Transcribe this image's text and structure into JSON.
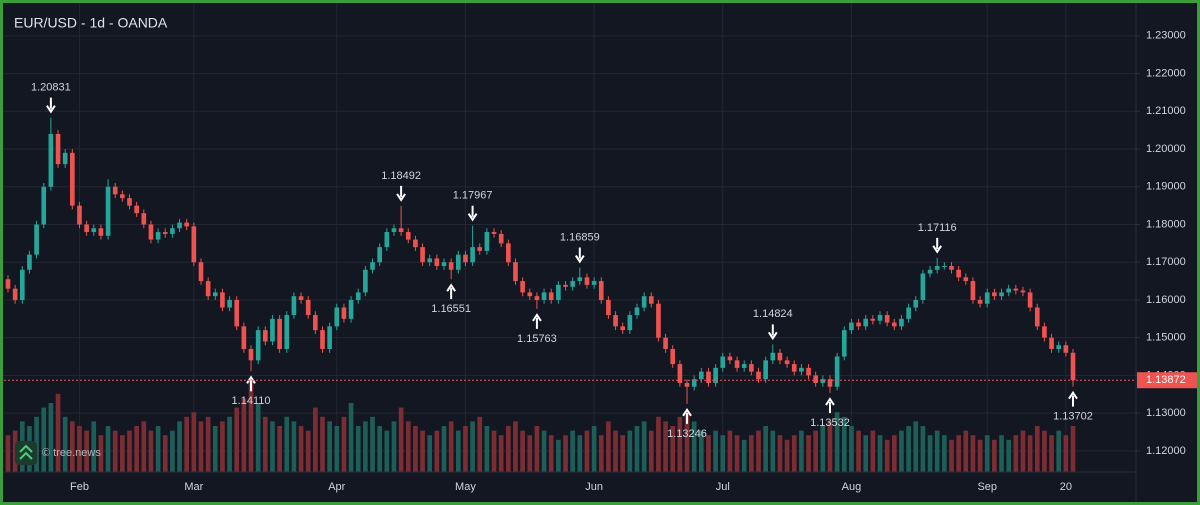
{
  "chart_data": {
    "type": "candlestick",
    "title": "EUR/USD - 1d - OANDA",
    "watermark": "© tree.news",
    "up_color": "#26a69a",
    "down_color": "#ef5350",
    "volume_up_color": "#1d5e58",
    "volume_down_color": "#7c2d33",
    "ylim": [
      1.1144,
      1.2395
    ],
    "yticks": [
      {
        "value": 1.12,
        "label": "1.12000"
      },
      {
        "value": 1.13,
        "label": "1.13000"
      },
      {
        "value": 1.14,
        "label": "1.14000"
      },
      {
        "value": 1.15,
        "label": "1.15000"
      },
      {
        "value": 1.16,
        "label": "1.16000"
      },
      {
        "value": 1.17,
        "label": "1.17000"
      },
      {
        "value": 1.18,
        "label": "1.18000"
      },
      {
        "value": 1.19,
        "label": "1.19000"
      },
      {
        "value": 1.2,
        "label": "1.20000"
      },
      {
        "value": 1.21,
        "label": "1.21000"
      },
      {
        "value": 1.22,
        "label": "1.22000"
      },
      {
        "value": 1.23,
        "label": "1.23000"
      }
    ],
    "grid": true,
    "categories": [
      null,
      null,
      null,
      null,
      null,
      null,
      null,
      null,
      null,
      null,
      "Feb",
      null,
      null,
      null,
      null,
      null,
      null,
      null,
      null,
      null,
      null,
      null,
      null,
      null,
      null,
      null,
      "Mar",
      null,
      null,
      null,
      null,
      null,
      null,
      null,
      null,
      null,
      null,
      null,
      null,
      null,
      null,
      null,
      null,
      null,
      null,
      null,
      "Apr",
      null,
      null,
      null,
      null,
      null,
      null,
      null,
      null,
      null,
      null,
      null,
      null,
      null,
      null,
      null,
      null,
      null,
      "May",
      null,
      null,
      null,
      null,
      null,
      null,
      null,
      null,
      null,
      null,
      null,
      null,
      null,
      null,
      null,
      null,
      null,
      "Jun",
      null,
      null,
      null,
      null,
      null,
      null,
      null,
      null,
      null,
      null,
      null,
      null,
      null,
      null,
      null,
      null,
      null,
      "Jul",
      null,
      null,
      null,
      null,
      null,
      null,
      null,
      null,
      null,
      null,
      null,
      null,
      null,
      null,
      null,
      null,
      null,
      "Aug",
      null,
      null,
      null,
      null,
      null,
      null,
      null,
      null,
      null,
      null,
      null,
      null,
      null,
      null,
      null,
      null,
      null,
      null,
      "Sep",
      null,
      null,
      null,
      null,
      null,
      null,
      null,
      null,
      null,
      null,
      "20",
      null
    ],
    "ohlc": [
      [
        1.1655,
        1.1665,
        1.162,
        1.163
      ],
      [
        1.163,
        1.164,
        1.159,
        1.16
      ],
      [
        1.16,
        1.169,
        1.159,
        1.168
      ],
      [
        1.168,
        1.173,
        1.167,
        1.172
      ],
      [
        1.172,
        1.181,
        1.171,
        1.18
      ],
      [
        1.18,
        1.191,
        1.179,
        1.19
      ],
      [
        1.19,
        1.20831,
        1.189,
        1.204
      ],
      [
        1.204,
        1.205,
        1.195,
        1.196
      ],
      [
        1.196,
        1.2,
        1.195,
        1.199
      ],
      [
        1.199,
        1.2,
        1.184,
        1.185
      ],
      [
        1.185,
        1.186,
        1.179,
        1.18
      ],
      [
        1.18,
        1.181,
        1.177,
        1.178
      ],
      [
        1.178,
        1.18,
        1.177,
        1.179
      ],
      [
        1.179,
        1.18,
        1.176,
        1.177
      ],
      [
        1.177,
        1.192,
        1.176,
        1.19
      ],
      [
        1.19,
        1.191,
        1.187,
        1.188
      ],
      [
        1.188,
        1.189,
        1.186,
        1.187
      ],
      [
        1.187,
        1.188,
        1.184,
        1.185
      ],
      [
        1.185,
        1.186,
        1.182,
        1.183
      ],
      [
        1.183,
        1.184,
        1.179,
        1.18
      ],
      [
        1.18,
        1.181,
        1.175,
        1.176
      ],
      [
        1.176,
        1.179,
        1.175,
        1.178
      ],
      [
        1.178,
        1.179,
        1.1765,
        1.1775
      ],
      [
        1.1775,
        1.18,
        1.1765,
        1.179
      ],
      [
        1.179,
        1.1815,
        1.178,
        1.1805
      ],
      [
        1.1805,
        1.1815,
        1.1785,
        1.1795
      ],
      [
        1.1795,
        1.1805,
        1.169,
        1.17
      ],
      [
        1.17,
        1.171,
        1.164,
        1.165
      ],
      [
        1.165,
        1.166,
        1.16,
        1.161
      ],
      [
        1.161,
        1.163,
        1.16,
        1.162
      ],
      [
        1.162,
        1.163,
        1.157,
        1.158
      ],
      [
        1.158,
        1.161,
        1.157,
        1.16
      ],
      [
        1.16,
        1.161,
        1.152,
        1.153
      ],
      [
        1.153,
        1.154,
        1.146,
        1.147
      ],
      [
        1.147,
        1.148,
        1.1411,
        1.144
      ],
      [
        1.144,
        1.153,
        1.143,
        1.152
      ],
      [
        1.152,
        1.153,
        1.148,
        1.149
      ],
      [
        1.149,
        1.156,
        1.148,
        1.155
      ],
      [
        1.155,
        1.156,
        1.146,
        1.147
      ],
      [
        1.147,
        1.157,
        1.146,
        1.156
      ],
      [
        1.156,
        1.162,
        1.155,
        1.161
      ],
      [
        1.161,
        1.162,
        1.159,
        1.16
      ],
      [
        1.16,
        1.161,
        1.155,
        1.156
      ],
      [
        1.156,
        1.157,
        1.151,
        1.152
      ],
      [
        1.152,
        1.153,
        1.146,
        1.147
      ],
      [
        1.147,
        1.154,
        1.146,
        1.153
      ],
      [
        1.153,
        1.159,
        1.152,
        1.158
      ],
      [
        1.158,
        1.159,
        1.154,
        1.155
      ],
      [
        1.155,
        1.161,
        1.154,
        1.16
      ],
      [
        1.16,
        1.163,
        1.159,
        1.162
      ],
      [
        1.162,
        1.169,
        1.161,
        1.168
      ],
      [
        1.168,
        1.171,
        1.167,
        1.17
      ],
      [
        1.17,
        1.175,
        1.169,
        1.174
      ],
      [
        1.174,
        1.179,
        1.173,
        1.178
      ],
      [
        1.178,
        1.18,
        1.177,
        1.179
      ],
      [
        1.179,
        1.18492,
        1.177,
        1.178
      ],
      [
        1.178,
        1.179,
        1.175,
        1.176
      ],
      [
        1.176,
        1.177,
        1.173,
        1.174
      ],
      [
        1.174,
        1.175,
        1.169,
        1.17
      ],
      [
        1.17,
        1.172,
        1.169,
        1.171
      ],
      [
        1.171,
        1.172,
        1.168,
        1.169
      ],
      [
        1.169,
        1.171,
        1.168,
        1.17
      ],
      [
        1.17,
        1.171,
        1.16551,
        1.168
      ],
      [
        1.168,
        1.173,
        1.167,
        1.172
      ],
      [
        1.172,
        1.173,
        1.169,
        1.17
      ],
      [
        1.17,
        1.17967,
        1.169,
        1.174
      ],
      [
        1.174,
        1.175,
        1.172,
        1.173
      ],
      [
        1.173,
        1.179,
        1.172,
        1.178
      ],
      [
        1.178,
        1.179,
        1.1765,
        1.1775
      ],
      [
        1.1775,
        1.1785,
        1.174,
        1.175
      ],
      [
        1.175,
        1.176,
        1.169,
        1.17
      ],
      [
        1.17,
        1.171,
        1.164,
        1.165
      ],
      [
        1.165,
        1.166,
        1.161,
        1.162
      ],
      [
        1.162,
        1.163,
        1.16,
        1.161
      ],
      [
        1.161,
        1.162,
        1.15763,
        1.16
      ],
      [
        1.16,
        1.163,
        1.159,
        1.162
      ],
      [
        1.162,
        1.163,
        1.159,
        1.16
      ],
      [
        1.16,
        1.165,
        1.159,
        1.164
      ],
      [
        1.164,
        1.165,
        1.1625,
        1.1635
      ],
      [
        1.1635,
        1.166,
        1.1625,
        1.165
      ],
      [
        1.165,
        1.16859,
        1.164,
        1.166
      ],
      [
        1.166,
        1.167,
        1.163,
        1.164
      ],
      [
        1.164,
        1.166,
        1.163,
        1.165
      ],
      [
        1.165,
        1.166,
        1.159,
        1.16
      ],
      [
        1.16,
        1.161,
        1.155,
        1.156
      ],
      [
        1.156,
        1.157,
        1.152,
        1.153
      ],
      [
        1.153,
        1.154,
        1.151,
        1.152
      ],
      [
        1.152,
        1.157,
        1.151,
        1.156
      ],
      [
        1.156,
        1.159,
        1.155,
        1.158
      ],
      [
        1.158,
        1.162,
        1.157,
        1.161
      ],
      [
        1.161,
        1.162,
        1.158,
        1.159
      ],
      [
        1.159,
        1.16,
        1.149,
        1.15
      ],
      [
        1.15,
        1.151,
        1.146,
        1.147
      ],
      [
        1.147,
        1.148,
        1.142,
        1.143
      ],
      [
        1.143,
        1.144,
        1.137,
        1.138
      ],
      [
        1.138,
        1.139,
        1.13246,
        1.137
      ],
      [
        1.137,
        1.14,
        1.136,
        1.139
      ],
      [
        1.139,
        1.142,
        1.138,
        1.141
      ],
      [
        1.141,
        1.142,
        1.137,
        1.138
      ],
      [
        1.138,
        1.143,
        1.137,
        1.142
      ],
      [
        1.142,
        1.146,
        1.141,
        1.145
      ],
      [
        1.145,
        1.146,
        1.143,
        1.144
      ],
      [
        1.144,
        1.145,
        1.141,
        1.142
      ],
      [
        1.142,
        1.144,
        1.141,
        1.143
      ],
      [
        1.143,
        1.144,
        1.14,
        1.141
      ],
      [
        1.141,
        1.142,
        1.138,
        1.139
      ],
      [
        1.139,
        1.145,
        1.138,
        1.144
      ],
      [
        1.144,
        1.14824,
        1.143,
        1.146
      ],
      [
        1.146,
        1.147,
        1.143,
        1.144
      ],
      [
        1.144,
        1.145,
        1.142,
        1.143
      ],
      [
        1.143,
        1.144,
        1.14,
        1.141
      ],
      [
        1.141,
        1.143,
        1.14,
        1.142
      ],
      [
        1.142,
        1.143,
        1.139,
        1.14
      ],
      [
        1.14,
        1.141,
        1.137,
        1.138
      ],
      [
        1.138,
        1.14,
        1.137,
        1.139
      ],
      [
        1.139,
        1.14,
        1.13532,
        1.137
      ],
      [
        1.137,
        1.146,
        1.136,
        1.145
      ],
      [
        1.145,
        1.153,
        1.144,
        1.152
      ],
      [
        1.152,
        1.155,
        1.151,
        1.154
      ],
      [
        1.154,
        1.155,
        1.152,
        1.153
      ],
      [
        1.153,
        1.156,
        1.152,
        1.155
      ],
      [
        1.155,
        1.156,
        1.1535,
        1.1545
      ],
      [
        1.1545,
        1.157,
        1.1535,
        1.156
      ],
      [
        1.156,
        1.157,
        1.153,
        1.154
      ],
      [
        1.154,
        1.155,
        1.152,
        1.153
      ],
      [
        1.153,
        1.156,
        1.152,
        1.155
      ],
      [
        1.155,
        1.159,
        1.154,
        1.158
      ],
      [
        1.158,
        1.161,
        1.157,
        1.16
      ],
      [
        1.16,
        1.168,
        1.159,
        1.167
      ],
      [
        1.167,
        1.169,
        1.166,
        1.168
      ],
      [
        1.168,
        1.17116,
        1.167,
        1.169
      ],
      [
        1.169,
        1.17,
        1.168,
        1.169
      ],
      [
        1.169,
        1.17,
        1.167,
        1.168
      ],
      [
        1.168,
        1.169,
        1.165,
        1.166
      ],
      [
        1.166,
        1.167,
        1.164,
        1.165
      ],
      [
        1.165,
        1.166,
        1.159,
        1.16
      ],
      [
        1.16,
        1.161,
        1.158,
        1.159
      ],
      [
        1.159,
        1.163,
        1.158,
        1.162
      ],
      [
        1.162,
        1.163,
        1.16,
        1.161
      ],
      [
        1.161,
        1.163,
        1.16,
        1.162
      ],
      [
        1.162,
        1.164,
        1.161,
        1.163
      ],
      [
        1.163,
        1.164,
        1.1615,
        1.1625
      ],
      [
        1.1625,
        1.1635,
        1.161,
        1.162
      ],
      [
        1.162,
        1.163,
        1.157,
        1.158
      ],
      [
        1.158,
        1.159,
        1.152,
        1.153
      ],
      [
        1.153,
        1.154,
        1.149,
        1.15
      ],
      [
        1.15,
        1.151,
        1.146,
        1.147
      ],
      [
        1.147,
        1.149,
        1.146,
        1.148
      ],
      [
        1.148,
        1.149,
        1.145,
        1.146
      ],
      [
        1.146,
        1.147,
        1.13702,
        1.13872
      ]
    ],
    "volume": [
      40,
      45,
      55,
      50,
      60,
      70,
      75,
      85,
      60,
      55,
      50,
      45,
      55,
      40,
      50,
      45,
      40,
      45,
      50,
      55,
      45,
      50,
      40,
      45,
      55,
      60,
      65,
      55,
      60,
      50,
      55,
      60,
      70,
      80,
      98,
      75,
      60,
      55,
      50,
      60,
      55,
      50,
      45,
      70,
      60,
      55,
      50,
      60,
      75,
      50,
      55,
      60,
      50,
      45,
      55,
      70,
      55,
      50,
      45,
      40,
      45,
      50,
      55,
      45,
      50,
      55,
      60,
      50,
      45,
      40,
      50,
      55,
      45,
      40,
      50,
      45,
      40,
      35,
      40,
      45,
      40,
      45,
      50,
      40,
      55,
      45,
      40,
      45,
      50,
      55,
      45,
      60,
      55,
      50,
      60,
      65,
      55,
      45,
      40,
      45,
      40,
      45,
      40,
      35,
      40,
      45,
      50,
      45,
      40,
      35,
      40,
      45,
      40,
      45,
      50,
      55,
      65,
      60,
      50,
      45,
      40,
      45,
      40,
      35,
      40,
      45,
      50,
      55,
      50,
      40,
      45,
      40,
      35,
      40,
      45,
      40,
      35,
      40,
      35,
      40,
      35,
      40,
      45,
      40,
      50,
      45,
      40,
      45,
      40,
      50
    ],
    "volume_lim": [
      0,
      100
    ],
    "high_labels": {
      "6": "1.20831",
      "55": "1.18492",
      "65": "1.17967",
      "80": "1.16859",
      "107": "1.14824",
      "130": "1.17116"
    },
    "low_labels": {
      "34": "1.14110",
      "62": "1.16551",
      "74": "1.15763",
      "95": "1.13246",
      "115": "1.13532",
      "149": "1.13702"
    }
  }
}
